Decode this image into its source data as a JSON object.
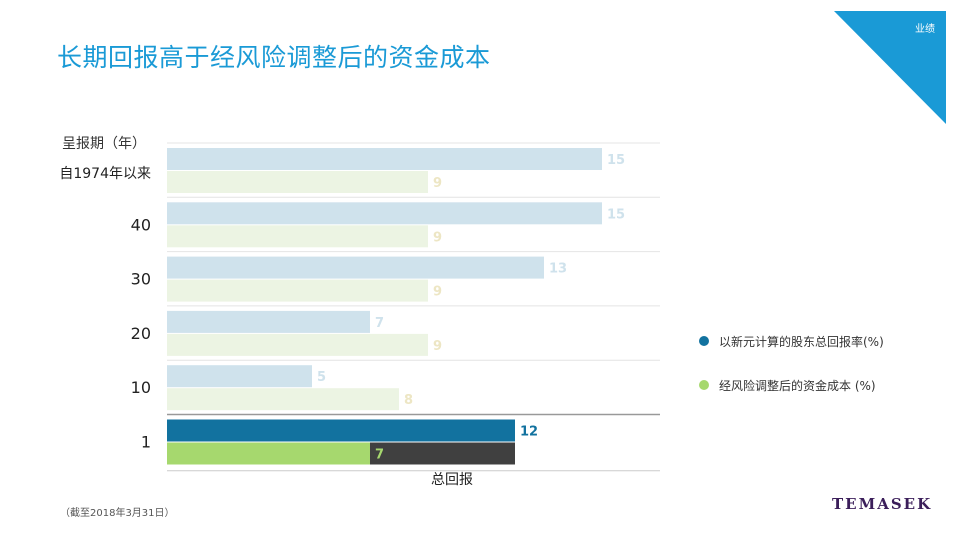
{
  "page": {
    "title": "长期回报高于经风险调整后的资金成本",
    "corner_label": "业绩",
    "footnote": "（截至2018年3月31日）",
    "logo": "TEMASEK"
  },
  "colors": {
    "accent": "#1a9ad6",
    "return_highlight": "#12729f",
    "return_faded": "#cfe2ec",
    "cost_highlight": "#a6d86e",
    "cost_faded": "#ecf4e3",
    "cost_remainder": "#404040"
  },
  "chart_data": {
    "type": "bar",
    "orientation": "horizontal",
    "y_header": "呈报期（年）",
    "categories": [
      "自1974年以来",
      "40",
      "30",
      "20",
      "10",
      "1"
    ],
    "series": [
      {
        "name": "以新元计算的股东总回报率(%)",
        "values": [
          15,
          15,
          13,
          7,
          5,
          12
        ]
      },
      {
        "name": "经风险调整后的资金成本 (%)",
        "values": [
          9,
          9,
          9,
          9,
          8,
          7
        ]
      }
    ],
    "highlighted_category": "1",
    "xlabel": "总回报",
    "ylabel": "呈报期（年）",
    "xlim": [
      0,
      17
    ],
    "legend_position": "right"
  }
}
